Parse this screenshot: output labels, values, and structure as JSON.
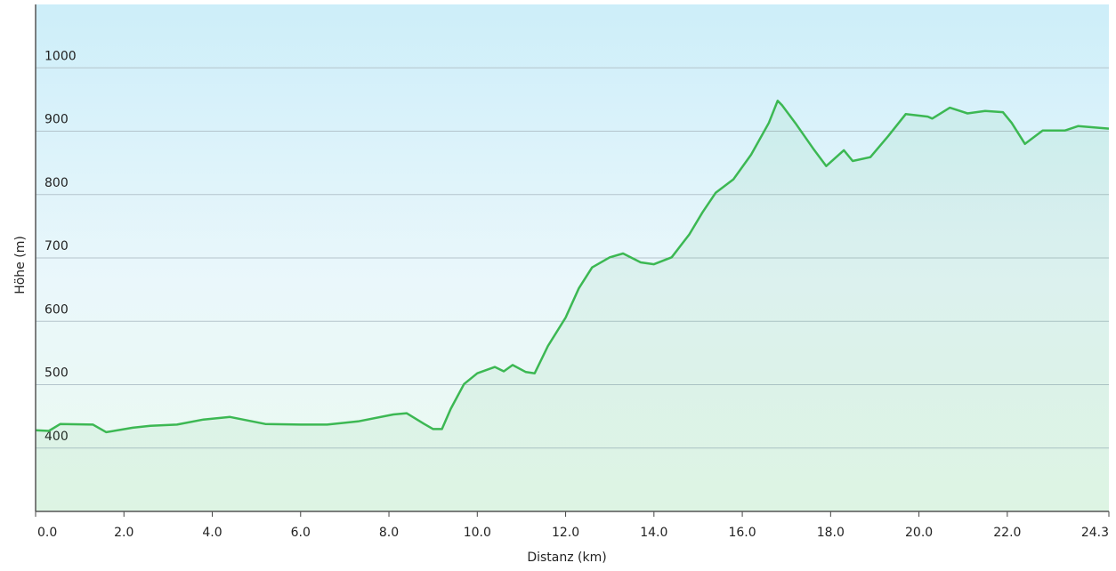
{
  "chart_data": {
    "type": "area",
    "x_label": "Distanz  (km)",
    "y_label": "Höhe (m)",
    "color": "#3cb853",
    "grid": true,
    "xlim": [
      0,
      24.3
    ],
    "ylim": [
      300,
      1100
    ],
    "xticks": [
      {
        "value": 0,
        "label": "0.0"
      },
      {
        "value": 2,
        "label": "2.0"
      },
      {
        "value": 4,
        "label": "4.0"
      },
      {
        "value": 6,
        "label": "6.0"
      },
      {
        "value": 8,
        "label": "8.0"
      },
      {
        "value": 10,
        "label": "10.0"
      },
      {
        "value": 12,
        "label": "12.0"
      },
      {
        "value": 14,
        "label": "14.0"
      },
      {
        "value": 16,
        "label": "16.0"
      },
      {
        "value": 18,
        "label": "18.0"
      },
      {
        "value": 20,
        "label": "20.0"
      },
      {
        "value": 22,
        "label": "22.0"
      },
      24.3
    ],
    "yticks": [
      400,
      500,
      600,
      700,
      800,
      900,
      1000
    ],
    "x": [
      0,
      0.3,
      0.56,
      1.3,
      1.6,
      2.2,
      2.6,
      3.2,
      3.8,
      4.4,
      5.2,
      6.0,
      6.6,
      7.3,
      8.1,
      8.4,
      8.8,
      9.0,
      9.2,
      9.4,
      9.7,
      10.0,
      10.4,
      10.6,
      10.8,
      11.1,
      11.3,
      11.6,
      12.0,
      12.3,
      12.6,
      13.0,
      13.3,
      13.7,
      14.0,
      14.4,
      14.8,
      15.1,
      15.4,
      15.8,
      16.2,
      16.6,
      16.8,
      16.9,
      17.2,
      17.6,
      17.9,
      18.3,
      18.5,
      18.9,
      19.3,
      19.7,
      20.2,
      20.3,
      20.7,
      21.1,
      21.5,
      21.9,
      22.1,
      22.4,
      22.8,
      23.3,
      23.6,
      24.3
    ],
    "values": [
      428,
      427,
      438,
      437,
      425,
      432,
      435,
      437,
      445,
      449,
      438,
      437,
      437,
      442,
      453,
      455,
      438,
      430,
      430,
      462,
      501,
      518,
      528,
      521,
      531,
      520,
      518,
      561,
      606,
      652,
      685,
      701,
      707,
      693,
      690,
      701,
      737,
      772,
      803,
      824,
      863,
      913,
      948,
      941,
      913,
      873,
      845,
      870,
      853,
      859,
      892,
      927,
      923,
      920,
      937,
      928,
      932,
      930,
      913,
      880,
      901,
      901,
      908,
      904
    ]
  }
}
